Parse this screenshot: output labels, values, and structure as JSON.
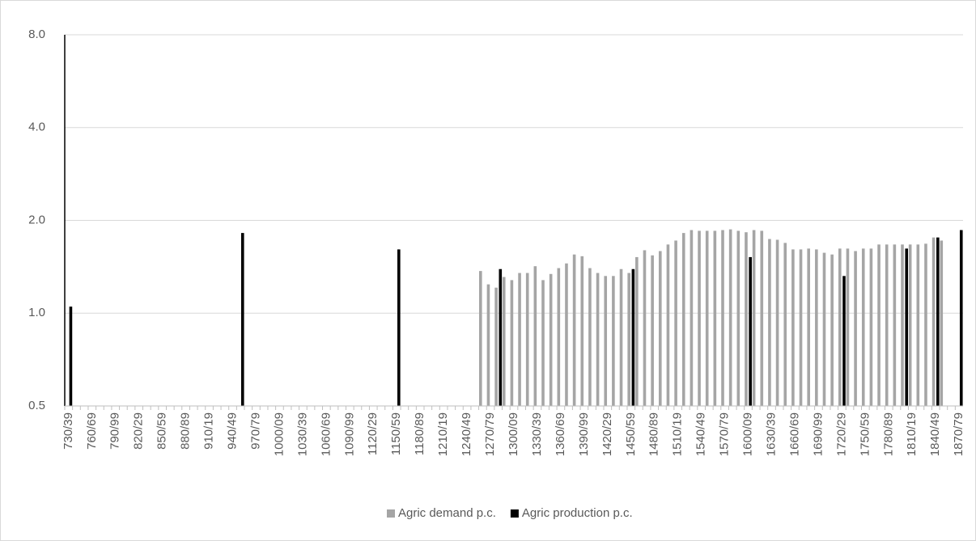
{
  "chart_data": {
    "type": "bar",
    "categories": [
      "730/39",
      null,
      null,
      "760/69",
      null,
      null,
      "790/99",
      null,
      null,
      "820/29",
      null,
      null,
      "850/59",
      null,
      null,
      "880/89",
      null,
      null,
      "910/19",
      null,
      null,
      "940/49",
      null,
      null,
      "970/79",
      null,
      null,
      "1000/09",
      null,
      null,
      "1030/39",
      null,
      null,
      "1060/69",
      null,
      null,
      "1090/99",
      null,
      null,
      "1120/29",
      null,
      null,
      "1150/59",
      null,
      null,
      "1180/89",
      null,
      null,
      "1210/19",
      null,
      null,
      "1240/49",
      null,
      null,
      "1270/79",
      null,
      null,
      "1300/09",
      null,
      null,
      "1330/39",
      null,
      null,
      "1360/69",
      null,
      null,
      "1390/99",
      null,
      null,
      "1420/29",
      null,
      null,
      "1450/59",
      null,
      null,
      "1480/89",
      null,
      null,
      "1510/19",
      null,
      null,
      "1540/49",
      null,
      null,
      "1570/79",
      null,
      null,
      "1600/09",
      null,
      null,
      "1630/39",
      null,
      null,
      "1660/69",
      null,
      null,
      "1690/99",
      null,
      null,
      "1720/29",
      null,
      null,
      "1750/59",
      null,
      null,
      "1780/89",
      null,
      null,
      "1810/19",
      null,
      null,
      "1840/49",
      null,
      null,
      "1870/79"
    ],
    "series": [
      {
        "name": "Agric demand p.c.",
        "color": "#a5a5a5",
        "values": [
          null,
          null,
          null,
          null,
          null,
          null,
          null,
          null,
          null,
          null,
          null,
          null,
          null,
          null,
          null,
          null,
          null,
          null,
          null,
          null,
          null,
          null,
          null,
          null,
          null,
          null,
          null,
          null,
          null,
          null,
          null,
          null,
          null,
          null,
          null,
          null,
          null,
          null,
          null,
          null,
          null,
          null,
          null,
          null,
          null,
          null,
          null,
          null,
          null,
          null,
          null,
          null,
          null,
          1.37,
          1.24,
          1.21,
          1.31,
          1.28,
          1.35,
          1.35,
          1.42,
          1.28,
          1.34,
          1.4,
          1.45,
          1.55,
          1.53,
          1.4,
          1.35,
          1.32,
          1.32,
          1.39,
          1.35,
          1.52,
          1.6,
          1.54,
          1.59,
          1.67,
          1.72,
          1.82,
          1.86,
          1.85,
          1.85,
          1.85,
          1.86,
          1.87,
          1.85,
          1.83,
          1.86,
          1.85,
          1.74,
          1.73,
          1.69,
          1.61,
          1.61,
          1.62,
          1.61,
          1.57,
          1.55,
          1.62,
          1.62,
          1.59,
          1.62,
          1.62,
          1.67,
          1.67,
          1.67,
          1.67,
          1.67,
          1.67,
          1.68,
          1.76,
          1.72,
          null,
          null
        ]
      },
      {
        "name": "Agric production p.c.",
        "color": "#000000",
        "values": [
          1.05,
          null,
          null,
          null,
          null,
          null,
          null,
          null,
          null,
          null,
          null,
          null,
          null,
          null,
          null,
          null,
          null,
          null,
          null,
          null,
          null,
          null,
          1.82,
          null,
          null,
          null,
          null,
          null,
          null,
          null,
          null,
          null,
          null,
          null,
          null,
          null,
          null,
          null,
          null,
          null,
          null,
          null,
          1.61,
          null,
          null,
          null,
          null,
          null,
          null,
          null,
          null,
          null,
          null,
          null,
          null,
          1.39,
          null,
          null,
          null,
          null,
          null,
          null,
          null,
          null,
          null,
          null,
          null,
          null,
          null,
          null,
          null,
          null,
          1.39,
          null,
          null,
          null,
          null,
          null,
          null,
          null,
          null,
          null,
          null,
          null,
          null,
          null,
          null,
          1.52,
          null,
          null,
          null,
          null,
          null,
          null,
          null,
          null,
          null,
          null,
          null,
          1.32,
          null,
          null,
          null,
          null,
          null,
          null,
          null,
          1.62,
          null,
          null,
          null,
          1.76,
          null,
          null,
          1.86
        ]
      }
    ],
    "ylim": [
      0.5,
      8
    ],
    "yscale": "log",
    "yticks": [
      0.5,
      {
        "value": 1,
        "label": "1.0"
      },
      {
        "value": 2,
        "label": "2.0"
      },
      {
        "value": 4,
        "label": "4.0"
      },
      {
        "value": 8,
        "label": "8.0"
      }
    ],
    "grid": true,
    "legend": "bottom"
  }
}
